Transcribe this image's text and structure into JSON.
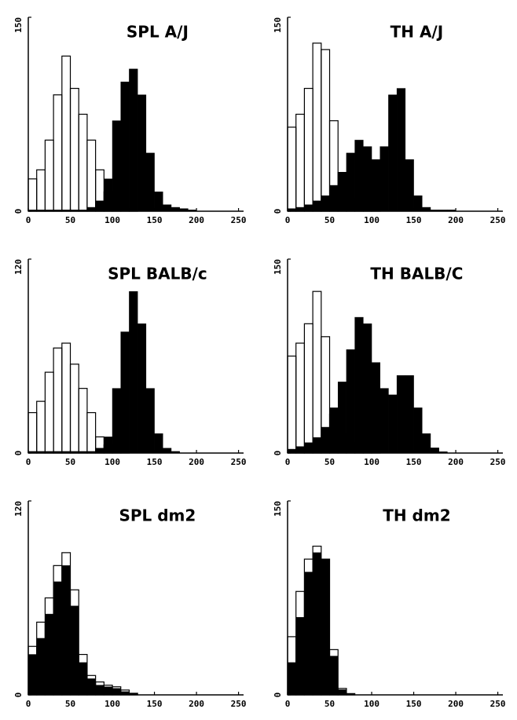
{
  "chart_data": [
    {
      "type": "histogram",
      "title": "SPL A/J",
      "bins": [
        0,
        10,
        20,
        30,
        40,
        50,
        60,
        70,
        80,
        90,
        100,
        110,
        120,
        130,
        140,
        150,
        160,
        170,
        180,
        190,
        200
      ],
      "series": [
        {
          "color": "#000000",
          "filled": true,
          "values": [
            1,
            1,
            1,
            1,
            1,
            1,
            1,
            3,
            8,
            25,
            70,
            100,
            110,
            90,
            45,
            15,
            5,
            3,
            2,
            1
          ]
        },
        {
          "color": "#000000",
          "filled": false,
          "values": [
            25,
            32,
            55,
            90,
            120,
            95,
            75,
            55,
            32,
            15,
            5,
            2,
            1,
            0,
            0,
            0,
            0,
            0,
            0,
            0
          ]
        }
      ],
      "xlim": [
        0,
        256
      ],
      "xticks": [
        0,
        50,
        100,
        150,
        200,
        250
      ],
      "ylim": [
        0,
        150
      ],
      "yticks": [
        0,
        150
      ]
    },
    {
      "type": "histogram",
      "title": "TH A/J",
      "bins": [
        0,
        10,
        20,
        30,
        40,
        50,
        60,
        70,
        80,
        90,
        100,
        110,
        120,
        130,
        140,
        150,
        160,
        170,
        180,
        190,
        200
      ],
      "series": [
        {
          "color": "#000000",
          "filled": true,
          "values": [
            2,
            3,
            5,
            8,
            12,
            20,
            30,
            45,
            55,
            50,
            40,
            50,
            90,
            95,
            40,
            12,
            3,
            1,
            1,
            1
          ]
        },
        {
          "color": "#000000",
          "filled": false,
          "values": [
            65,
            75,
            95,
            130,
            125,
            70,
            30,
            10,
            5,
            2,
            1,
            0,
            0,
            0,
            0,
            0,
            0,
            0,
            0,
            0
          ]
        }
      ],
      "xlim": [
        0,
        256
      ],
      "xticks": [
        0,
        50,
        100,
        150,
        200,
        250
      ],
      "ylim": [
        0,
        150
      ],
      "yticks": [
        0,
        150
      ]
    },
    {
      "type": "histogram",
      "title": "SPL BALB/c",
      "bins": [
        0,
        10,
        20,
        30,
        40,
        50,
        60,
        70,
        80,
        90,
        100,
        110,
        120,
        130,
        140,
        150,
        160,
        170,
        180,
        190,
        200
      ],
      "series": [
        {
          "color": "#000000",
          "filled": true,
          "values": [
            1,
            1,
            1,
            1,
            1,
            1,
            1,
            1,
            3,
            10,
            40,
            75,
            100,
            80,
            40,
            12,
            3,
            1,
            0,
            0
          ]
        },
        {
          "color": "#000000",
          "filled": false,
          "values": [
            25,
            32,
            50,
            65,
            68,
            55,
            40,
            25,
            10,
            5,
            2,
            1,
            0,
            0,
            0,
            0,
            0,
            0,
            0,
            0
          ]
        }
      ],
      "xlim": [
        0,
        256
      ],
      "xticks": [
        0,
        50,
        100,
        150,
        200,
        250
      ],
      "ylim": [
        0,
        120
      ],
      "yticks": [
        0,
        120
      ]
    },
    {
      "type": "histogram",
      "title": "TH BALB/C",
      "bins": [
        0,
        10,
        20,
        30,
        40,
        50,
        60,
        70,
        80,
        90,
        100,
        110,
        120,
        130,
        140,
        150,
        160,
        170,
        180,
        190,
        200
      ],
      "series": [
        {
          "color": "#000000",
          "filled": true,
          "values": [
            3,
            5,
            8,
            12,
            20,
            35,
            55,
            80,
            105,
            100,
            70,
            50,
            45,
            60,
            60,
            35,
            15,
            4,
            1,
            0
          ]
        },
        {
          "color": "#000000",
          "filled": false,
          "values": [
            75,
            85,
            100,
            125,
            90,
            30,
            15,
            8,
            4,
            2,
            1,
            0,
            0,
            0,
            0,
            0,
            0,
            0,
            0,
            0
          ]
        }
      ],
      "xlim": [
        0,
        256
      ],
      "xticks": [
        0,
        50,
        100,
        150,
        200,
        250
      ],
      "ylim": [
        0,
        150
      ],
      "yticks": [
        0,
        150
      ]
    },
    {
      "type": "histogram",
      "title": "SPL dm2",
      "bins": [
        0,
        10,
        20,
        30,
        40,
        50,
        60,
        70,
        80,
        90,
        100,
        110,
        120,
        130,
        140,
        150,
        160,
        170,
        180,
        190,
        200
      ],
      "series": [
        {
          "color": "#000000",
          "filled": true,
          "values": [
            25,
            35,
            50,
            70,
            80,
            55,
            20,
            10,
            6,
            5,
            4,
            2,
            1,
            0,
            0,
            0,
            0,
            0,
            0,
            0
          ]
        },
        {
          "color": "#000000",
          "filled": false,
          "values": [
            30,
            45,
            60,
            80,
            88,
            65,
            25,
            12,
            8,
            6,
            5,
            3,
            1,
            0,
            0,
            0,
            0,
            0,
            0,
            0
          ]
        }
      ],
      "xlim": [
        0,
        256
      ],
      "xticks": [
        0,
        50,
        100,
        150,
        200,
        250
      ],
      "ylim": [
        0,
        120
      ],
      "yticks": [
        0,
        120
      ]
    },
    {
      "type": "histogram",
      "title": "TH dm2",
      "bins": [
        0,
        10,
        20,
        30,
        40,
        50,
        60,
        70,
        80,
        90,
        100,
        110,
        120,
        130,
        140,
        150,
        160,
        170,
        180,
        190,
        200
      ],
      "series": [
        {
          "color": "#000000",
          "filled": true,
          "values": [
            25,
            60,
            95,
            110,
            105,
            30,
            4,
            1,
            0,
            0,
            0,
            0,
            0,
            0,
            0,
            0,
            0,
            0,
            0,
            0
          ]
        },
        {
          "color": "#000000",
          "filled": false,
          "values": [
            45,
            80,
            105,
            115,
            105,
            35,
            5,
            1,
            0,
            0,
            0,
            0,
            0,
            0,
            0,
            0,
            0,
            0,
            0,
            0
          ]
        }
      ],
      "xlim": [
        0,
        256
      ],
      "xticks": [
        0,
        50,
        100,
        150,
        200,
        250
      ],
      "ylim": [
        0,
        150
      ],
      "yticks": [
        0,
        150
      ]
    }
  ]
}
